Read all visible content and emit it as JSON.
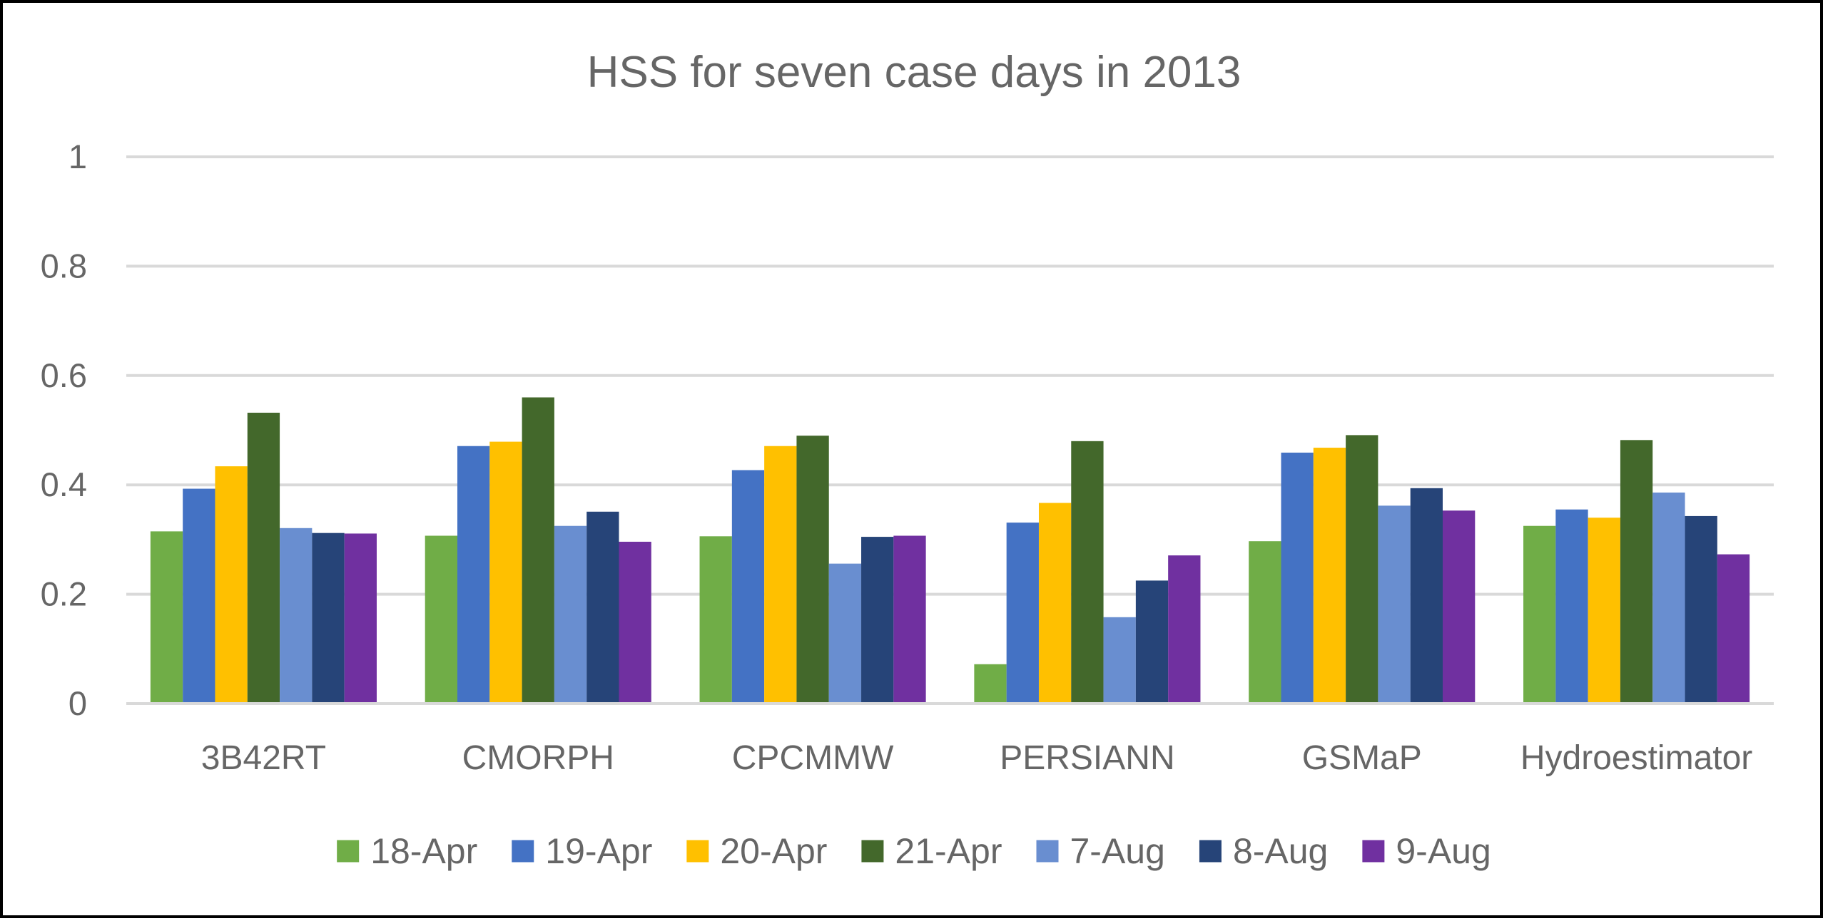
{
  "chart_data": {
    "type": "bar",
    "title": "HSS for seven case days in 2013",
    "xlabel": "",
    "ylabel": "",
    "ylim": [
      0,
      1
    ],
    "yticks": [
      0,
      0.2,
      0.4,
      0.6,
      0.8,
      1
    ],
    "ytick_labels": [
      "0",
      "0.2",
      "0.4",
      "0.6",
      "0.8",
      "1"
    ],
    "grid": true,
    "legend_position": "bottom",
    "categories": [
      "3B42RT",
      "CMORPH",
      "CPCMMW",
      "PERSIANN",
      "GSMaP",
      "Hydroestimator"
    ],
    "series": [
      {
        "name": "18-Apr",
        "color": "#70AD47",
        "values": [
          0.315,
          0.307,
          0.306,
          0.072,
          0.297,
          0.325
        ]
      },
      {
        "name": "19-Apr",
        "color": "#4472C4",
        "values": [
          0.393,
          0.471,
          0.427,
          0.331,
          0.459,
          0.355
        ]
      },
      {
        "name": "20-Apr",
        "color": "#FFC000",
        "values": [
          0.434,
          0.479,
          0.471,
          0.367,
          0.468,
          0.34
        ]
      },
      {
        "name": "21-Apr",
        "color": "#43682B",
        "values": [
          0.532,
          0.56,
          0.49,
          0.48,
          0.491,
          0.482
        ]
      },
      {
        "name": "7-Aug",
        "color": "#698ED0",
        "values": [
          0.321,
          0.325,
          0.256,
          0.158,
          0.362,
          0.386
        ]
      },
      {
        "name": "8-Aug",
        "color": "#264478",
        "values": [
          0.312,
          0.351,
          0.305,
          0.225,
          0.394,
          0.343
        ]
      },
      {
        "name": "9-Aug",
        "color": "#7030A0",
        "values": [
          0.311,
          0.296,
          0.307,
          0.271,
          0.353,
          0.273
        ]
      }
    ]
  },
  "colors": {
    "gridline": "#D9D9D9",
    "axis_line": "#D9D9D9",
    "text": "#666666",
    "border": "#000000"
  }
}
